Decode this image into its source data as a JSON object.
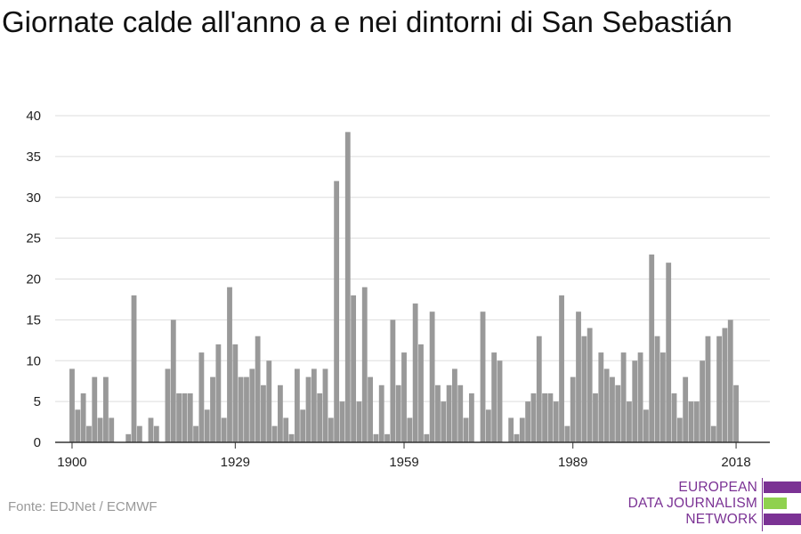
{
  "title": "Giornate calde all'anno a e nei dintorni di San Sebastián",
  "source": "Fonte: EDJNet / ECMWF",
  "logo": {
    "lines": [
      "EUROPEAN",
      "DATA JOURNALISM",
      "NETWORK"
    ],
    "colors": {
      "purple": "#7b3294",
      "green": "#8fd14f"
    }
  },
  "chart_data": {
    "type": "bar",
    "title": "Giornate calde all'anno a e nei dintorni di San Sebastián",
    "xlabel": "",
    "ylabel": "",
    "ylim": [
      0,
      40
    ],
    "yticks": [
      0,
      5,
      10,
      15,
      20,
      25,
      30,
      35,
      40
    ],
    "xticks": [
      1900,
      1929,
      1959,
      1989,
      2018
    ],
    "grid": true,
    "bar_color": "#999999",
    "x": [
      1900,
      1901,
      1902,
      1903,
      1904,
      1905,
      1906,
      1907,
      1908,
      1909,
      1910,
      1911,
      1912,
      1913,
      1914,
      1915,
      1916,
      1917,
      1918,
      1919,
      1920,
      1921,
      1922,
      1923,
      1924,
      1925,
      1926,
      1927,
      1928,
      1929,
      1930,
      1931,
      1932,
      1933,
      1934,
      1935,
      1936,
      1937,
      1938,
      1939,
      1940,
      1941,
      1942,
      1943,
      1944,
      1945,
      1946,
      1947,
      1948,
      1949,
      1950,
      1951,
      1952,
      1953,
      1954,
      1955,
      1956,
      1957,
      1958,
      1959,
      1960,
      1961,
      1962,
      1963,
      1964,
      1965,
      1966,
      1967,
      1968,
      1969,
      1970,
      1971,
      1972,
      1973,
      1974,
      1975,
      1976,
      1977,
      1978,
      1979,
      1980,
      1981,
      1982,
      1983,
      1984,
      1985,
      1986,
      1987,
      1988,
      1989,
      1990,
      1991,
      1992,
      1993,
      1994,
      1995,
      1996,
      1997,
      1998,
      1999,
      2000,
      2001,
      2002,
      2003,
      2004,
      2005,
      2006,
      2007,
      2008,
      2009,
      2010,
      2011,
      2012,
      2013,
      2014,
      2015,
      2016,
      2017,
      2018
    ],
    "values": [
      9,
      4,
      6,
      2,
      8,
      3,
      8,
      3,
      0,
      0,
      1,
      18,
      2,
      0,
      3,
      2,
      0,
      9,
      15,
      6,
      6,
      6,
      2,
      11,
      4,
      8,
      12,
      3,
      19,
      12,
      8,
      8,
      9,
      13,
      7,
      10,
      2,
      7,
      3,
      1,
      9,
      4,
      8,
      9,
      6,
      9,
      3,
      32,
      5,
      38,
      18,
      5,
      19,
      8,
      1,
      7,
      1,
      15,
      7,
      11,
      3,
      17,
      12,
      1,
      16,
      7,
      5,
      7,
      9,
      7,
      3,
      6,
      0,
      16,
      4,
      11,
      10,
      0,
      3,
      1,
      3,
      5,
      6,
      13,
      6,
      6,
      5,
      18,
      2,
      8,
      16,
      13,
      14,
      6,
      11,
      9,
      8,
      7,
      11,
      5,
      10,
      11,
      4,
      23,
      13,
      11,
      22,
      6,
      3,
      8,
      5,
      5,
      10,
      13,
      2,
      13,
      14,
      15,
      7
    ]
  }
}
